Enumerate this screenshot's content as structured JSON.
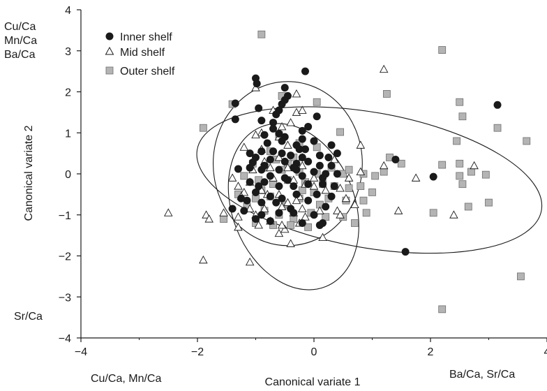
{
  "chart_data": {
    "type": "scatter",
    "title": "",
    "xlabel": "Canonical variate 1",
    "ylabel": "Canonical variate 2",
    "xlim": [
      -4,
      4
    ],
    "ylim": [
      -4,
      4
    ],
    "xticks": [
      "−4",
      "−2",
      "0",
      "2",
      "4"
    ],
    "yticks": [
      "4",
      "3",
      "2",
      "1",
      "0",
      "−1",
      "−2",
      "−3",
      "−4"
    ],
    "grid": false,
    "legend_position": "top-left",
    "corner_labels": {
      "top_left": [
        "Cu/Ca",
        "Mn/Ca",
        "Ba/Ca"
      ],
      "bottom_left": "Sr/Ca",
      "below_x_left": "Cu/Ca, Mn/Ca",
      "below_x_right": "Ba/Ca, Sr/Ca"
    },
    "series": [
      {
        "name": "Inner shelf",
        "marker": "filled-circle",
        "color": "#1a1a1a",
        "points": [
          [
            -1.0,
            2.33
          ],
          [
            -0.98,
            2.2
          ],
          [
            -0.5,
            2.1
          ],
          [
            -0.15,
            2.5
          ],
          [
            -0.55,
            1.7
          ],
          [
            -0.6,
            1.55
          ],
          [
            -0.65,
            1.45
          ],
          [
            -0.45,
            1.9
          ],
          [
            -0.5,
            1.8
          ],
          [
            -1.35,
            1.72
          ],
          [
            -1.35,
            1.33
          ],
          [
            -0.95,
            1.6
          ],
          [
            -0.7,
            1.25
          ],
          [
            -0.2,
            1.05
          ],
          [
            -0.1,
            1.15
          ],
          [
            0.05,
            1.4
          ],
          [
            -0.9,
            1.3
          ],
          [
            -0.85,
            0.95
          ],
          [
            -0.6,
            0.98
          ],
          [
            -0.2,
            0.85
          ],
          [
            -0.5,
            0.9
          ],
          [
            -0.25,
            0.6
          ],
          [
            0.0,
            0.8
          ],
          [
            -0.8,
            0.75
          ],
          [
            -0.55,
            0.8
          ],
          [
            -0.3,
            0.7
          ],
          [
            -0.9,
            0.55
          ],
          [
            -0.7,
            0.55
          ],
          [
            -0.4,
            0.45
          ],
          [
            -0.2,
            0.4
          ],
          [
            0.1,
            0.45
          ],
          [
            0.25,
            0.4
          ],
          [
            0.4,
            0.5
          ],
          [
            -1.0,
            0.4
          ],
          [
            -0.75,
            0.35
          ],
          [
            -0.5,
            0.3
          ],
          [
            -0.3,
            0.25
          ],
          [
            -0.1,
            0.3
          ],
          [
            0.1,
            0.2
          ],
          [
            0.3,
            0.2
          ],
          [
            -1.3,
            0.12
          ],
          [
            -1.1,
            0.15
          ],
          [
            -0.9,
            0.1
          ],
          [
            -0.6,
            0.1
          ],
          [
            -0.3,
            0.1
          ],
          [
            0.0,
            0.05
          ],
          [
            0.2,
            0.0
          ],
          [
            0.4,
            0.0
          ],
          [
            -1.05,
            0.28
          ],
          [
            -1.1,
            0.5
          ],
          [
            -0.75,
            -0.05
          ],
          [
            -0.5,
            -0.1
          ],
          [
            -0.2,
            -0.05
          ],
          [
            0.15,
            -0.1
          ],
          [
            -1.1,
            -0.2
          ],
          [
            -0.85,
            -0.2
          ],
          [
            -0.6,
            -0.3
          ],
          [
            -0.35,
            -0.3
          ],
          [
            -0.1,
            -0.25
          ],
          [
            0.15,
            -0.25
          ],
          [
            0.35,
            -0.3
          ],
          [
            -1.0,
            -0.45
          ],
          [
            -0.75,
            -0.55
          ],
          [
            -0.55,
            -0.6
          ],
          [
            -0.3,
            -0.5
          ],
          [
            0.05,
            -0.5
          ],
          [
            0.3,
            -0.55
          ],
          [
            -1.15,
            -0.65
          ],
          [
            -0.9,
            -0.7
          ],
          [
            -0.65,
            -0.7
          ],
          [
            -0.4,
            -0.85
          ],
          [
            -0.1,
            -0.65
          ],
          [
            0.2,
            -0.8
          ],
          [
            -1.4,
            -0.85
          ],
          [
            -1.2,
            -0.9
          ],
          [
            -0.9,
            -1.0
          ],
          [
            -0.6,
            -0.95
          ],
          [
            -0.35,
            -0.95
          ],
          [
            0.0,
            -1.0
          ],
          [
            0.15,
            -1.2
          ],
          [
            -1.0,
            -1.1
          ],
          [
            -0.75,
            -1.15
          ],
          [
            -0.2,
            -1.2
          ],
          [
            0.1,
            -1.25
          ],
          [
            1.4,
            0.35
          ],
          [
            2.05,
            -0.07
          ],
          [
            1.57,
            -1.9
          ],
          [
            3.15,
            1.68
          ],
          [
            -0.35,
            0.15
          ],
          [
            -0.55,
            0.5
          ],
          [
            -0.15,
            0.6
          ],
          [
            -0.95,
            -0.3
          ],
          [
            -0.45,
            -0.15
          ],
          [
            0.3,
            0.7
          ],
          [
            -0.7,
            1.1
          ],
          [
            -0.85,
            0.2
          ],
          [
            -1.25,
            -0.6
          ]
        ]
      },
      {
        "name": "Mid shelf",
        "marker": "open-triangle",
        "color": "#1a1a1a",
        "points": [
          [
            -1.0,
            2.1
          ],
          [
            -0.3,
            1.95
          ],
          [
            -0.7,
            1.55
          ],
          [
            -0.55,
            1.15
          ],
          [
            -0.3,
            1.5
          ],
          [
            -0.2,
            1.55
          ],
          [
            -0.9,
            1.0
          ],
          [
            -1.0,
            0.95
          ],
          [
            -0.6,
            0.9
          ],
          [
            -0.4,
            1.25
          ],
          [
            -0.45,
            0.7
          ],
          [
            -0.9,
            0.6
          ],
          [
            -1.2,
            0.65
          ],
          [
            -0.2,
            0.4
          ],
          [
            -0.6,
            0.4
          ],
          [
            -0.85,
            0.3
          ],
          [
            -1.05,
            0.1
          ],
          [
            -0.45,
            0.15
          ],
          [
            -0.2,
            0.2
          ],
          [
            -0.35,
            -0.15
          ],
          [
            0.35,
            0.35
          ],
          [
            -1.1,
            -0.2
          ],
          [
            -1.4,
            -0.1
          ],
          [
            -1.3,
            -0.3
          ],
          [
            -1.2,
            -0.45
          ],
          [
            -0.9,
            -0.4
          ],
          [
            -0.8,
            -0.5
          ],
          [
            -0.6,
            -0.5
          ],
          [
            -0.45,
            -0.7
          ],
          [
            -0.25,
            -0.55
          ],
          [
            0.0,
            -0.3
          ],
          [
            0.2,
            -0.4
          ],
          [
            0.45,
            -0.35
          ],
          [
            0.55,
            -0.6
          ],
          [
            0.7,
            -0.75
          ],
          [
            0.4,
            -0.9
          ],
          [
            0.1,
            -0.9
          ],
          [
            -0.2,
            -0.85
          ],
          [
            -0.35,
            -0.95
          ],
          [
            -0.55,
            -0.8
          ],
          [
            -0.85,
            -0.85
          ],
          [
            -1.1,
            -0.85
          ],
          [
            -1.3,
            -1.05
          ],
          [
            -1.3,
            -1.3
          ],
          [
            -1.0,
            -1.0
          ],
          [
            -0.75,
            -1.15
          ],
          [
            -0.5,
            -1.35
          ],
          [
            -0.4,
            -1.7
          ],
          [
            -0.25,
            -1.2
          ],
          [
            0.15,
            -1.55
          ],
          [
            -0.55,
            -1.25
          ],
          [
            -0.15,
            -0.25
          ],
          [
            -0.7,
            -0.1
          ],
          [
            0.6,
            -0.1
          ],
          [
            0.8,
            0.05
          ],
          [
            0.8,
            0.7
          ],
          [
            1.2,
            0.2
          ],
          [
            1.45,
            -0.9
          ],
          [
            1.75,
            -0.1
          ],
          [
            1.2,
            2.55
          ],
          [
            2.4,
            -1.0
          ],
          [
            2.75,
            0.2
          ],
          [
            -2.5,
            -0.95
          ],
          [
            -1.85,
            -1.0
          ],
          [
            -1.8,
            -1.1
          ],
          [
            -1.9,
            -2.1
          ],
          [
            -1.1,
            -2.15
          ],
          [
            -1.55,
            -0.95
          ],
          [
            -0.95,
            -1.25
          ],
          [
            -0.6,
            -1.45
          ],
          [
            -0.3,
            -0.65
          ],
          [
            0.0,
            -0.1
          ],
          [
            -0.75,
            0.15
          ],
          [
            -1.25,
            -0.55
          ],
          [
            -0.15,
            -1.05
          ],
          [
            0.45,
            -1.0
          ]
        ]
      },
      {
        "name": "Outer shelf",
        "marker": "filled-square",
        "color": "#b4b4b4",
        "points": [
          [
            -0.9,
            3.4
          ],
          [
            2.2,
            3.02
          ],
          [
            1.25,
            1.95
          ],
          [
            -1.4,
            1.7
          ],
          [
            -0.55,
            1.9
          ],
          [
            0.05,
            1.75
          ],
          [
            -1.9,
            1.12
          ],
          [
            -0.6,
            0.95
          ],
          [
            0.45,
            1.02
          ],
          [
            -0.75,
            0.55
          ],
          [
            -0.25,
            0.75
          ],
          [
            0.05,
            0.65
          ],
          [
            -0.35,
            0.4
          ],
          [
            -0.65,
            0.35
          ],
          [
            -1.05,
            0.25
          ],
          [
            -0.85,
            0.15
          ],
          [
            -0.55,
            0.1
          ],
          [
            -0.25,
            0.05
          ],
          [
            0.05,
            0.0
          ],
          [
            0.3,
            0.15
          ],
          [
            0.5,
            0.0
          ],
          [
            -1.2,
            -0.05
          ],
          [
            -0.95,
            -0.15
          ],
          [
            -0.7,
            -0.25
          ],
          [
            -0.45,
            -0.15
          ],
          [
            -0.15,
            -0.2
          ],
          [
            0.15,
            -0.25
          ],
          [
            0.35,
            -0.3
          ],
          [
            0.6,
            -0.35
          ],
          [
            0.8,
            -0.3
          ],
          [
            0.85,
            0.0
          ],
          [
            1.0,
            -0.45
          ],
          [
            1.2,
            0.05
          ],
          [
            1.3,
            0.4
          ],
          [
            1.5,
            0.25
          ],
          [
            -1.3,
            -0.5
          ],
          [
            -1.0,
            -0.6
          ],
          [
            -0.75,
            -0.55
          ],
          [
            -0.5,
            -0.75
          ],
          [
            -0.25,
            -0.6
          ],
          [
            0.0,
            -0.45
          ],
          [
            0.25,
            -0.6
          ],
          [
            0.55,
            -0.65
          ],
          [
            0.85,
            -0.65
          ],
          [
            0.9,
            -0.95
          ],
          [
            -1.15,
            -0.8
          ],
          [
            -0.85,
            -0.9
          ],
          [
            -0.6,
            -1.0
          ],
          [
            -0.35,
            -1.1
          ],
          [
            -0.05,
            -0.95
          ],
          [
            0.2,
            -1.05
          ],
          [
            0.5,
            -1.05
          ],
          [
            0.7,
            -1.2
          ],
          [
            -1.0,
            -1.2
          ],
          [
            -0.7,
            -1.25
          ],
          [
            -0.4,
            -1.25
          ],
          [
            -0.1,
            -1.3
          ],
          [
            -1.55,
            -1.1
          ],
          [
            2.05,
            -0.95
          ],
          [
            2.2,
            0.22
          ],
          [
            2.45,
            0.8
          ],
          [
            2.5,
            1.75
          ],
          [
            2.55,
            1.4
          ],
          [
            2.5,
            0.25
          ],
          [
            2.5,
            -0.05
          ],
          [
            2.65,
            -0.8
          ],
          [
            2.7,
            0.05
          ],
          [
            2.55,
            -0.25
          ],
          [
            2.95,
            -0.02
          ],
          [
            3.0,
            -0.7
          ],
          [
            3.15,
            1.12
          ],
          [
            3.65,
            0.8
          ],
          [
            3.55,
            -2.5
          ],
          [
            2.2,
            -3.3
          ],
          [
            -0.45,
            0.25
          ],
          [
            -0.2,
            -0.4
          ],
          [
            0.6,
            0.1
          ],
          [
            -0.9,
            -0.4
          ],
          [
            0.1,
            -0.75
          ],
          [
            1.05,
            -0.05
          ]
        ]
      }
    ],
    "ellipses": [
      {
        "name": "Inner shelf",
        "cx": -0.45,
        "cy": 0.25,
        "rx": 1.28,
        "ry": 2.0,
        "rotation_deg": 0
      },
      {
        "name": "Mid shelf",
        "cx": -0.35,
        "cy": -0.8,
        "rx": 1.05,
        "ry": 2.1,
        "rotation_deg": -22
      },
      {
        "name": "Outer shelf",
        "cx": 0.95,
        "cy": -0.15,
        "rx": 3.0,
        "ry": 1.65,
        "rotation_deg": 10
      }
    ]
  }
}
